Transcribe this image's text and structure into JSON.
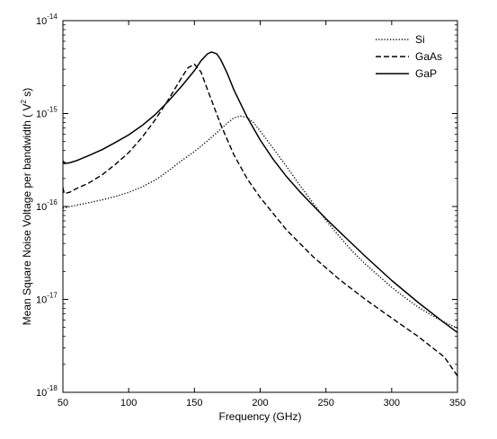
{
  "chart_data": {
    "type": "line",
    "title": "",
    "xlabel": "Frequency (GHz)",
    "ylabel": "Mean Square Noise Voltage per bandwidth ( V",
    "ylabel_superscript": "2",
    "ylabel_suffix": " s)",
    "xlim": [
      50,
      350
    ],
    "ylim": [
      1e-18,
      1e-14
    ],
    "yscale": "log",
    "grid": false,
    "legend_position": "top-right",
    "x_ticks": [
      {
        "value": 50,
        "label": "50"
      },
      {
        "value": 100,
        "label": "100"
      },
      {
        "value": 150,
        "label": "150"
      },
      {
        "value": 200,
        "label": "200"
      },
      {
        "value": 250,
        "label": "250"
      },
      {
        "value": 300,
        "label": "300"
      },
      {
        "value": 350,
        "label": "350"
      }
    ],
    "y_ticks": [
      {
        "value": 1e-18,
        "base": "10",
        "exp": "-18"
      },
      {
        "value": 1e-17,
        "base": "10",
        "exp": "-17"
      },
      {
        "value": 1e-16,
        "base": "10",
        "exp": "-16"
      },
      {
        "value": 1e-15,
        "base": "10",
        "exp": "-15"
      },
      {
        "value": 1e-14,
        "base": "10",
        "exp": "-14"
      }
    ],
    "series": [
      {
        "name": "Si",
        "style": "dotted",
        "color": "#000000",
        "x": [
          50,
          60,
          70,
          80,
          90,
          100,
          110,
          120,
          130,
          140,
          150,
          160,
          170,
          175,
          180,
          185,
          190,
          195,
          200,
          210,
          220,
          230,
          240,
          250,
          260,
          270,
          280,
          290,
          300,
          310,
          320,
          330,
          340,
          350
        ],
        "y": [
          9.6e-17,
          1.03e-16,
          1.1e-16,
          1.18e-16,
          1.28e-16,
          1.42e-16,
          1.62e-16,
          1.92e-16,
          2.4e-16,
          3.1e-16,
          3.9e-16,
          5.1e-16,
          6.8e-16,
          7.9e-16,
          9e-16,
          9.4e-16,
          9.1e-16,
          8e-16,
          6.5e-16,
          4.2e-16,
          2.7e-16,
          1.7e-16,
          1.1e-16,
          7.1e-17,
          4.8e-17,
          3.3e-17,
          2.4e-17,
          1.8e-17,
          1.35e-17,
          1.05e-17,
          8.3e-18,
          6.8e-18,
          5.7e-18,
          4.9e-18
        ]
      },
      {
        "name": "GaAs",
        "style": "dashed",
        "color": "#000000",
        "x": [
          50,
          51,
          55,
          60,
          70,
          80,
          90,
          100,
          110,
          120,
          130,
          140,
          145,
          150,
          155,
          160,
          170,
          180,
          190,
          200,
          220,
          240,
          260,
          280,
          300,
          320,
          340,
          350
        ],
        "y": [
          1.6e-16,
          1.38e-16,
          1.42e-16,
          1.55e-16,
          1.8e-16,
          2.2e-16,
          2.85e-16,
          3.8e-16,
          5.5e-16,
          8.5e-16,
          1.4e-15,
          2.4e-15,
          3.1e-15,
          3.4e-15,
          2.8e-15,
          1.8e-15,
          7.6e-16,
          3.6e-16,
          2e-16,
          1.25e-16,
          5.6e-17,
          2.9e-17,
          1.65e-17,
          1e-17,
          6.3e-18,
          4e-18,
          2.4e-18,
          1.5e-18
        ]
      },
      {
        "name": "GaP",
        "style": "solid",
        "color": "#000000",
        "x": [
          50,
          51,
          55,
          60,
          70,
          80,
          90,
          100,
          110,
          120,
          130,
          140,
          150,
          155,
          160,
          163,
          167,
          170,
          175,
          180,
          190,
          200,
          210,
          220,
          230,
          240,
          250,
          260,
          280,
          300,
          320,
          340,
          350
        ],
        "y": [
          3.1e-16,
          2.9e-16,
          2.95e-16,
          3.1e-16,
          3.55e-16,
          4.1e-16,
          4.9e-16,
          5.9e-16,
          7.4e-16,
          9.7e-16,
          1.35e-15,
          1.95e-15,
          2.9e-15,
          3.7e-15,
          4.4e-15,
          4.6e-15,
          4.4e-15,
          3.8e-15,
          2.7e-15,
          1.8e-15,
          9.2e-16,
          5.2e-16,
          3.2e-16,
          2.1e-16,
          1.45e-16,
          1.03e-16,
          7.4e-17,
          5.4e-17,
          2.9e-17,
          1.6e-17,
          9.3e-18,
          5.6e-18,
          4.4e-18
        ]
      }
    ]
  }
}
